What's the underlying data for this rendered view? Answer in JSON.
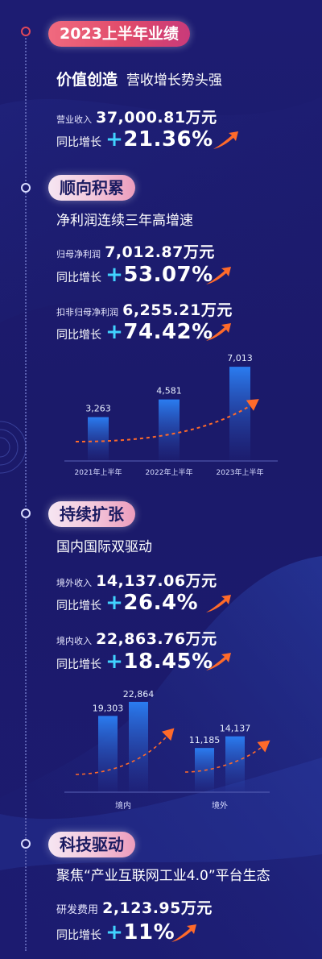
{
  "header": {
    "title": "2023上半年业绩"
  },
  "sections": [
    {
      "title": "价值创造",
      "subtitle": "营收增长势头强",
      "metrics": [
        {
          "label": "营业收入",
          "value": "37,000.81万元",
          "growth_label": "同比增长",
          "growth": "+21.36%"
        }
      ]
    },
    {
      "title": "顺向积累",
      "subtitle": "净利润连续三年高增速",
      "metrics": [
        {
          "label": "归母净利润",
          "value": "7,012.87万元",
          "growth_label": "同比增长",
          "growth": "+53.07%"
        },
        {
          "label": "扣非归母净利润",
          "value": "6,255.21万元",
          "growth_label": "同比增长",
          "growth": "+74.42%"
        }
      ]
    },
    {
      "title": "持续扩张",
      "subtitle": "国内国际双驱动",
      "metrics": [
        {
          "label": "境外收入",
          "value": "14,137.06万元",
          "growth_label": "同比增长",
          "growth": "+26.4%"
        },
        {
          "label": "境内收入",
          "value": "22,863.76万元",
          "growth_label": "同比增长",
          "growth": "+18.45%"
        }
      ]
    },
    {
      "title": "科技驱动",
      "subtitle": "聚焦“产业互联网工业4.0”平台生态",
      "metrics": [
        {
          "label": "研发费用",
          "value": "2,123.95万元",
          "growth_label": "同比增长",
          "growth": "+11%"
        }
      ]
    }
  ],
  "colors": {
    "accent_cyan": "#41d3ff",
    "accent_orange": "#ff6a2a",
    "pill_pink": "#e84f6e",
    "background": "#1c1b6e"
  },
  "chart_data": [
    {
      "type": "bar",
      "categories": [
        "2021年上半年",
        "2022年上半年",
        "2023年上半年"
      ],
      "values": [
        3263,
        4581,
        7013
      ],
      "value_labels": [
        "3,263",
        "4,581",
        "7,013"
      ],
      "ylim": [
        0,
        7800
      ],
      "grid": false,
      "annotation": "dashed-trend-arrow"
    },
    {
      "type": "bar",
      "categories": [
        "境内",
        "境外"
      ],
      "series": [
        {
          "values": [
            19303,
            11185
          ],
          "value_labels": [
            "19,303",
            "11,185"
          ]
        },
        {
          "values": [
            22864,
            14137
          ],
          "value_labels": [
            "22,864",
            "14,137"
          ]
        }
      ],
      "ylim": [
        0,
        25500
      ],
      "grid": false,
      "annotation": "dashed-trend-arrow"
    }
  ]
}
